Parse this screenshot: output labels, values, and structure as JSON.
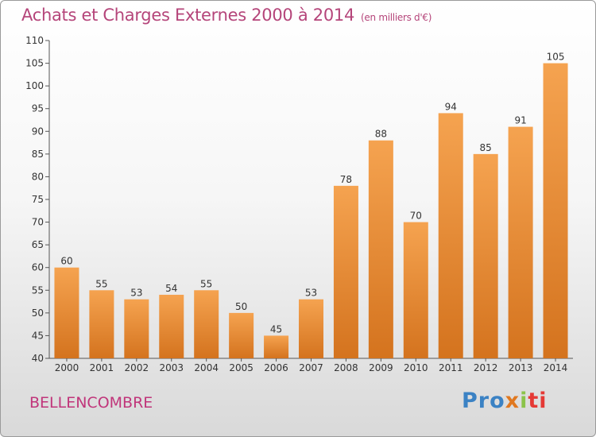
{
  "header": {
    "title": "Achats et Charges Externes 2000 à 2014",
    "unit": "(en milliers d'€)"
  },
  "commune": "BELLENCOMBRE",
  "logo": {
    "parts": [
      "Pro",
      "x",
      "i",
      "ti"
    ],
    "colors": [
      "#3b82c4",
      "#e07820",
      "#8bc34a",
      "#e53935"
    ]
  },
  "chart_data": {
    "type": "bar",
    "title": "Achats et Charges Externes 2000 à 2014",
    "subtitle": "(en milliers d'€)",
    "categories": [
      "2000",
      "2001",
      "2002",
      "2003",
      "2004",
      "2005",
      "2006",
      "2007",
      "2008",
      "2009",
      "2010",
      "2011",
      "2012",
      "2013",
      "2014"
    ],
    "values": [
      60,
      55,
      53,
      54,
      55,
      50,
      45,
      53,
      78,
      88,
      70,
      94,
      85,
      91,
      105
    ],
    "ylim": [
      40,
      110
    ],
    "yticks": [
      40,
      45,
      50,
      55,
      60,
      65,
      70,
      75,
      80,
      85,
      90,
      95,
      100,
      105,
      110
    ],
    "grid": false,
    "bar_color_top": "#f5a350",
    "bar_color_bottom": "#d4731e"
  }
}
